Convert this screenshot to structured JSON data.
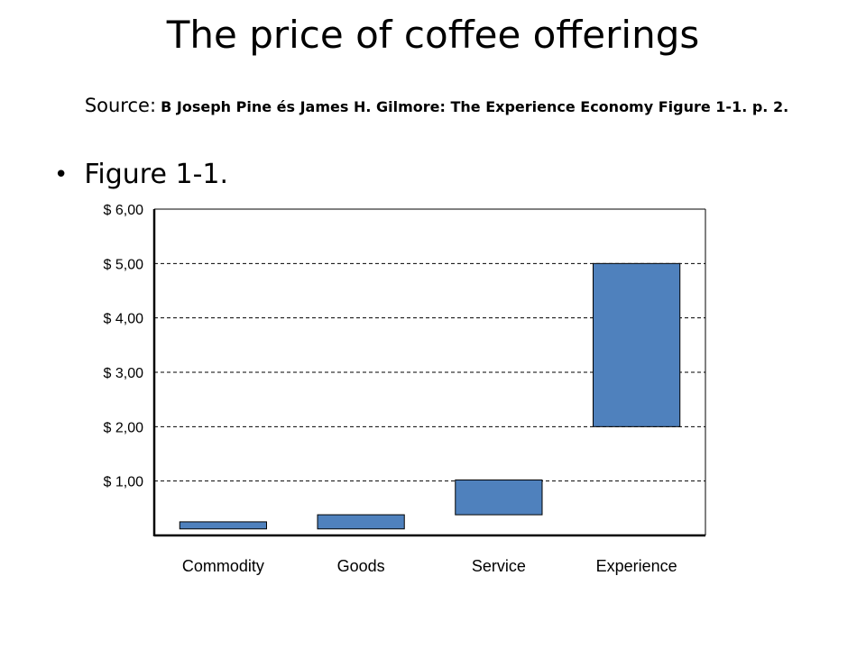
{
  "slide": {
    "title": "The price of coffee offerings",
    "source_label": "Source:",
    "source_text": "B Joseph Pine és James H. Gilmore: The Experience Economy Figure 1-1. p. 2.",
    "bullet": "Figure 1-1."
  },
  "colors": {
    "bar_fill": "#4f81bd",
    "bar_stroke": "#000000",
    "grid": "#000000"
  },
  "chart_data": {
    "type": "bar",
    "subtype": "floating-range",
    "title": "",
    "xlabel": "",
    "ylabel": "",
    "ylim": [
      0,
      6
    ],
    "yticks": [
      1,
      2,
      3,
      4,
      5,
      6
    ],
    "ytick_labels": [
      "$ 1,00",
      "$ 2,00",
      "$ 3,00",
      "$ 4,00",
      "$ 5,00",
      "$ 6,00"
    ],
    "grid": "horizontal-dashed",
    "categories": [
      "Commodity",
      "Goods",
      "Service",
      "Experience"
    ],
    "ranges": [
      {
        "low": 0.12,
        "high": 0.25
      },
      {
        "low": 0.12,
        "high": 0.38
      },
      {
        "low": 0.38,
        "high": 1.02
      },
      {
        "low": 2.0,
        "high": 5.0
      }
    ]
  }
}
